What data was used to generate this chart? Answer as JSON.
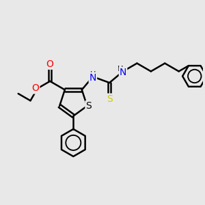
{
  "bg_color": "#e8e8e8",
  "bond_color": "#000000",
  "bond_width": 1.8,
  "atom_colors": {
    "O": "#ff0000",
    "N": "#0000ff",
    "S_thio": "#cccc00",
    "S_ring": "#000000"
  },
  "font_size_atom": 10,
  "font_size_H": 8,
  "figsize": [
    3.0,
    3.0
  ],
  "dpi": 100,
  "xlim": [
    0,
    10
  ],
  "ylim": [
    0,
    10
  ]
}
